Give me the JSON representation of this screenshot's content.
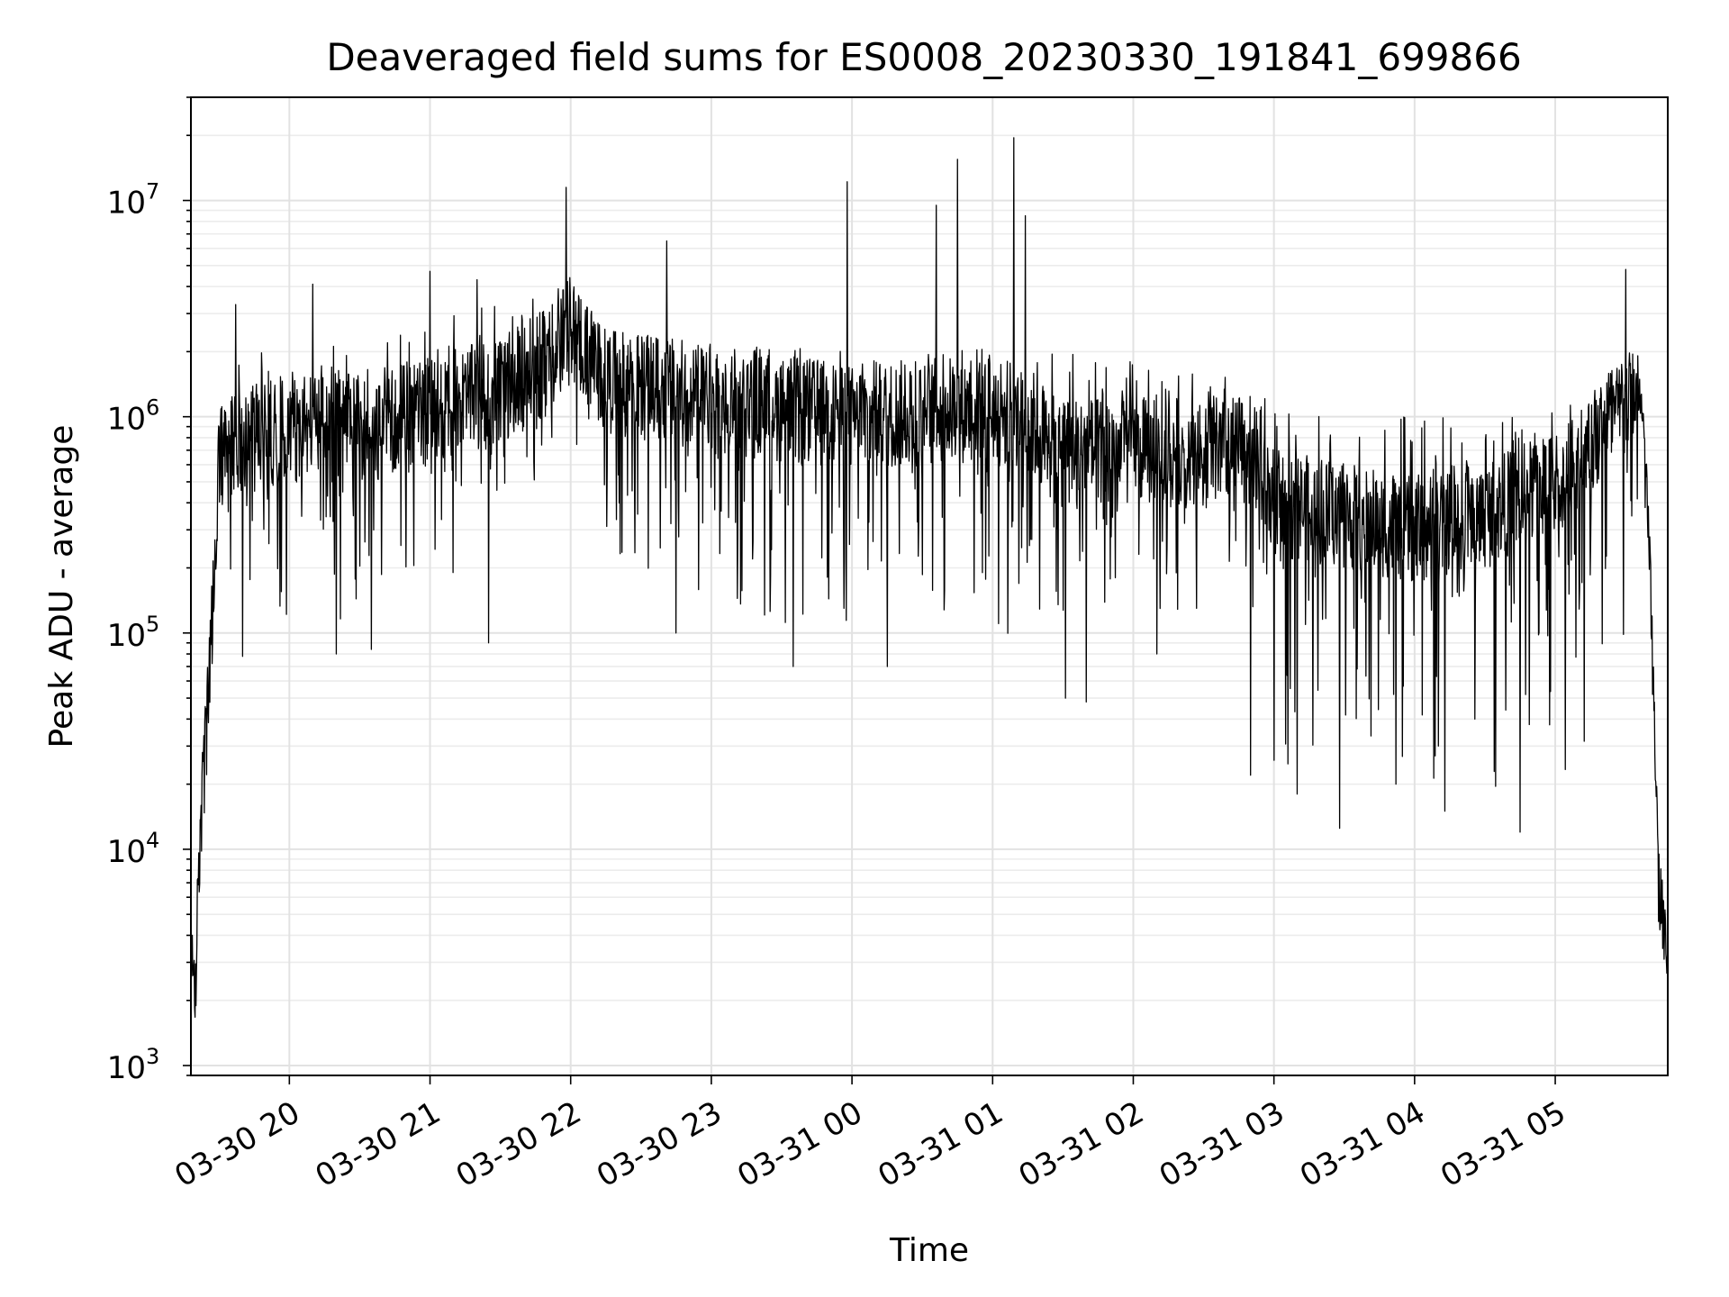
{
  "chart_data": {
    "type": "line",
    "title": "Deaveraged field sums for ES0008_20230330_191841_699866",
    "xlabel": "Time",
    "ylabel": "Peak ADU - average",
    "yscale": "log",
    "ylim": [
      900,
      30000000
    ],
    "xlim": [
      "2023-03-30 19:18",
      "2023-03-31 05:48"
    ],
    "grid": true,
    "line_color": "#000000",
    "x_ticks": [
      {
        "time": "2023-03-30 20:00",
        "label": "03-30 20"
      },
      {
        "time": "2023-03-30 21:00",
        "label": "03-30 21"
      },
      {
        "time": "2023-03-30 22:00",
        "label": "03-30 22"
      },
      {
        "time": "2023-03-30 23:00",
        "label": "03-30 23"
      },
      {
        "time": "2023-03-31 00:00",
        "label": "03-31 00"
      },
      {
        "time": "2023-03-31 01:00",
        "label": "03-31 01"
      },
      {
        "time": "2023-03-31 02:00",
        "label": "03-31 02"
      },
      {
        "time": "2023-03-31 03:00",
        "label": "03-31 03"
      },
      {
        "time": "2023-03-31 04:00",
        "label": "03-31 04"
      },
      {
        "time": "2023-03-31 05:00",
        "label": "03-31 05"
      }
    ],
    "y_ticks": [
      {
        "value": 1000,
        "base": "10",
        "exp": "3"
      },
      {
        "value": 10000,
        "base": "10",
        "exp": "4"
      },
      {
        "value": 100000,
        "base": "10",
        "exp": "5"
      },
      {
        "value": 1000000,
        "base": "10",
        "exp": "6"
      },
      {
        "value": 10000000,
        "base": "10",
        "exp": "7"
      }
    ],
    "envelope": {
      "x": [
        "2023-03-30 19:18",
        "2023-03-30 19:20",
        "2023-03-30 19:22",
        "2023-03-30 19:26",
        "2023-03-30 19:30",
        "2023-03-30 19:36",
        "2023-03-30 19:45",
        "2023-03-30 20:00",
        "2023-03-30 20:30",
        "2023-03-30 21:00",
        "2023-03-30 21:30",
        "2023-03-30 21:50",
        "2023-03-30 22:00",
        "2023-03-30 22:15",
        "2023-03-30 23:00",
        "2023-03-31 00:00",
        "2023-03-31 01:00",
        "2023-03-31 01:15",
        "2023-03-31 01:25",
        "2023-03-31 02:00",
        "2023-03-31 02:50",
        "2023-03-31 03:00",
        "2023-03-31 04:00",
        "2023-03-31 04:30",
        "2023-03-31 05:00",
        "2023-03-31 05:30",
        "2023-03-31 05:36",
        "2023-03-31 05:40",
        "2023-03-31 05:44",
        "2023-03-31 05:48"
      ],
      "typical": [
        3000,
        2500,
        12000,
        60000,
        600000,
        800000,
        800000,
        900000,
        900000,
        1100000,
        1300000,
        1800000,
        2500000,
        1500000,
        1200000,
        1000000,
        1100000,
        1000000,
        700000,
        700000,
        700000,
        400000,
        300000,
        350000,
        500000,
        1100000,
        1500000,
        300000,
        8000,
        3000
      ],
      "hi": [
        4000,
        4000,
        20000,
        100000,
        1100000,
        1700000,
        2000000,
        2000000,
        2200000,
        2800000,
        3500000,
        4300000,
        4500000,
        2500000,
        2200000,
        2000000,
        2100000,
        1500000,
        2500000,
        1800000,
        1500000,
        1100000,
        1000000,
        1000000,
        1100000,
        2000000,
        1900000,
        400000,
        10000,
        4500
      ],
      "lo": [
        1500,
        1400,
        8000,
        30000,
        200000,
        100000,
        100000,
        100000,
        100000,
        150000,
        300000,
        400000,
        800000,
        200000,
        100000,
        100000,
        100000,
        60000,
        50000,
        100000,
        100000,
        20000,
        20000,
        15000,
        20000,
        40000,
        500000,
        200000,
        4000,
        1800
      ]
    },
    "spikes": [
      {
        "x": "2023-03-30 19:37",
        "y": 3300000
      },
      {
        "x": "2023-03-30 20:10",
        "y": 4100000
      },
      {
        "x": "2023-03-30 21:00",
        "y": 4700000
      },
      {
        "x": "2023-03-30 21:20",
        "y": 4300000
      },
      {
        "x": "2023-03-30 21:58",
        "y": 11500000
      },
      {
        "x": "2023-03-30 22:41",
        "y": 6500000
      },
      {
        "x": "2023-03-30 23:58",
        "y": 12200000
      },
      {
        "x": "2023-03-31 00:36",
        "y": 9500000
      },
      {
        "x": "2023-03-31 00:45",
        "y": 15500000
      },
      {
        "x": "2023-03-31 01:09",
        "y": 19500000
      },
      {
        "x": "2023-03-31 01:14",
        "y": 8500000
      },
      {
        "x": "2023-03-31 05:30",
        "y": 4800000
      }
    ],
    "dips": [
      {
        "x": "2023-03-30 19:40",
        "y": 78000
      },
      {
        "x": "2023-03-30 20:20",
        "y": 80000
      },
      {
        "x": "2023-03-30 20:35",
        "y": 84000
      },
      {
        "x": "2023-03-30 21:25",
        "y": 90000
      },
      {
        "x": "2023-03-30 22:45",
        "y": 100000
      },
      {
        "x": "2023-03-30 23:35",
        "y": 70000
      },
      {
        "x": "2023-03-31 00:15",
        "y": 70000
      },
      {
        "x": "2023-03-31 01:31",
        "y": 50000
      },
      {
        "x": "2023-03-31 01:40",
        "y": 48000
      },
      {
        "x": "2023-03-31 02:10",
        "y": 80000
      },
      {
        "x": "2023-03-31 02:50",
        "y": 22000
      },
      {
        "x": "2023-03-31 03:10",
        "y": 18000
      },
      {
        "x": "2023-03-31 03:28",
        "y": 12500
      },
      {
        "x": "2023-03-31 03:52",
        "y": 20000
      },
      {
        "x": "2023-03-31 04:13",
        "y": 15000
      },
      {
        "x": "2023-03-31 04:45",
        "y": 12000
      }
    ]
  }
}
